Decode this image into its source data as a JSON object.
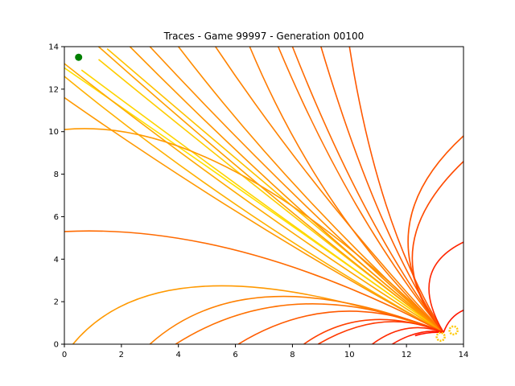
{
  "chart_data": {
    "type": "line",
    "title": "Traces - Game 99997 - Generation 00100",
    "xlabel": "",
    "ylabel": "",
    "xlim": [
      0,
      14
    ],
    "ylim": [
      0,
      14
    ],
    "x_ticks": [
      "0",
      "2",
      "4",
      "6",
      "8",
      "10",
      "12",
      "14"
    ],
    "y_ticks": [
      "0",
      "2",
      "4",
      "6",
      "8",
      "10",
      "12",
      "14"
    ],
    "grid": false,
    "legend": "none",
    "origin": [
      13.3,
      0.55
    ],
    "target_marker": {
      "x": 0.5,
      "y": 13.5,
      "color": "#008000"
    },
    "traces": [
      {
        "end": [
          0.0,
          13.0
        ],
        "ctrl": [
          6.5,
          7.0
        ],
        "color": "#FFE000"
      },
      {
        "end": [
          0.6,
          12.9
        ],
        "ctrl": [
          7.0,
          6.5
        ],
        "color": "#FFD400"
      },
      {
        "end": [
          1.2,
          13.4
        ],
        "ctrl": [
          7.2,
          6.8
        ],
        "color": "#FFCC00"
      },
      {
        "end": [
          1.5,
          13.9
        ],
        "ctrl": [
          7.5,
          7.0
        ],
        "color": "#FFC200"
      },
      {
        "end": [
          0.0,
          12.6
        ],
        "ctrl": [
          6.0,
          6.0
        ],
        "color": "#FFB000"
      },
      {
        "end": [
          0.0,
          13.2
        ],
        "ctrl": [
          6.6,
          6.2
        ],
        "color": "#FFAA00"
      },
      {
        "end": [
          0.0,
          11.6
        ],
        "ctrl": [
          6.5,
          5.5
        ],
        "color": "#FF9900"
      },
      {
        "end": [
          0.0,
          10.1
        ],
        "ctrl": [
          5.5,
          10.8
        ],
        "color": "#FF9900"
      },
      {
        "end": [
          0.0,
          5.3
        ],
        "ctrl": [
          6.0,
          5.7
        ],
        "color": "#FF6A00"
      },
      {
        "end": [
          1.2,
          14.0
        ],
        "ctrl": [
          7.5,
          6.5
        ],
        "color": "#FFA000"
      },
      {
        "end": [
          2.3,
          14.0
        ],
        "ctrl": [
          8.0,
          6.3
        ],
        "color": "#FF9600"
      },
      {
        "end": [
          3.0,
          14.0
        ],
        "ctrl": [
          8.2,
          6.5
        ],
        "color": "#FF8C00"
      },
      {
        "end": [
          4.0,
          14.0
        ],
        "ctrl": [
          8.0,
          7.0
        ],
        "color": "#FF8C00"
      },
      {
        "end": [
          5.3,
          14.0
        ],
        "ctrl": [
          8.8,
          7.0
        ],
        "color": "#FF8200"
      },
      {
        "end": [
          6.5,
          14.0
        ],
        "ctrl": [
          9.0,
          6.0
        ],
        "color": "#FF7A00"
      },
      {
        "end": [
          7.5,
          14.0
        ],
        "ctrl": [
          10.0,
          6.0
        ],
        "color": "#FF7000"
      },
      {
        "end": [
          8.0,
          14.0
        ],
        "ctrl": [
          10.5,
          5.5
        ],
        "color": "#FF6A00"
      },
      {
        "end": [
          9.0,
          14.0
        ],
        "ctrl": [
          11.0,
          5.0
        ],
        "color": "#FF6000"
      },
      {
        "end": [
          10.0,
          14.0
        ],
        "ctrl": [
          11.0,
          5.5
        ],
        "color": "#FF5800"
      },
      {
        "end": [
          0.3,
          0.0
        ],
        "ctrl": [
          3.5,
          5.2
        ],
        "color": "#FF9900"
      },
      {
        "end": [
          3.0,
          0.0
        ],
        "ctrl": [
          6.5,
          4.2
        ],
        "color": "#FF8000"
      },
      {
        "end": [
          3.9,
          0.0
        ],
        "ctrl": [
          8.0,
          3.5
        ],
        "color": "#FF7000"
      },
      {
        "end": [
          6.1,
          0.0
        ],
        "ctrl": [
          9.5,
          2.8
        ],
        "color": "#FF5A00"
      },
      {
        "end": [
          8.4,
          0.0
        ],
        "ctrl": [
          10.5,
          2.0
        ],
        "color": "#FF4000"
      },
      {
        "end": [
          8.9,
          0.0
        ],
        "ctrl": [
          11.2,
          1.8
        ],
        "color": "#FF3A00"
      },
      {
        "end": [
          10.8,
          0.0
        ],
        "ctrl": [
          12.0,
          1.2
        ],
        "color": "#FF2A00"
      },
      {
        "end": [
          11.5,
          0.0
        ],
        "ctrl": [
          12.5,
          0.8
        ],
        "color": "#FF2000"
      },
      {
        "end": [
          14.0,
          9.8
        ],
        "ctrl": [
          10.5,
          5.5
        ],
        "color": "#FF5500"
      },
      {
        "end": [
          14.0,
          8.6
        ],
        "ctrl": [
          10.8,
          4.5
        ],
        "color": "#FF4A00"
      },
      {
        "end": [
          14.0,
          4.8
        ],
        "ctrl": [
          12.0,
          3.5
        ],
        "color": "#FF2500"
      },
      {
        "end": [
          14.0,
          1.6
        ],
        "ctrl": [
          13.5,
          1.3
        ],
        "color": "#FF1500"
      },
      {
        "end": [
          12.3,
          0.4
        ],
        "ctrl": [
          12.8,
          0.6
        ],
        "color": "#FF1000"
      }
    ]
  }
}
